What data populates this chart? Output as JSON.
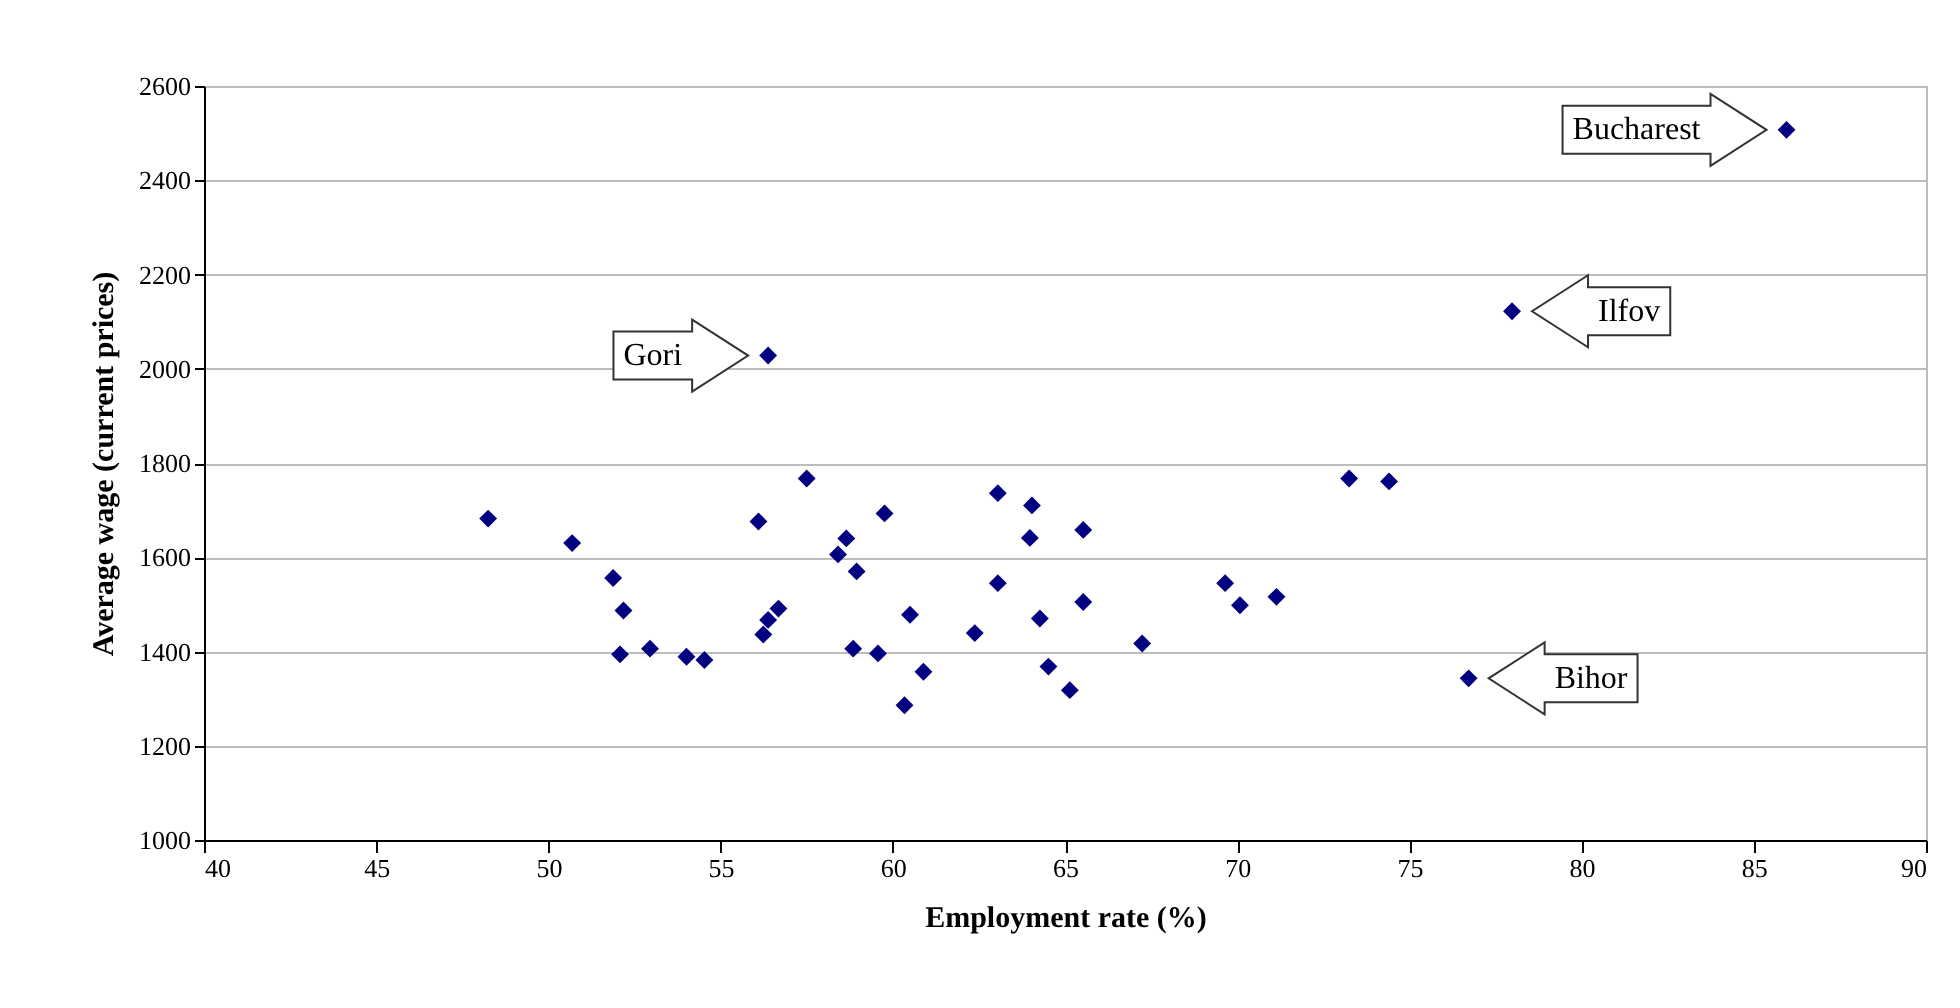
{
  "chart_data": {
    "type": "scatter",
    "xlabel": "Employment rate (%)",
    "ylabel": "Average wage (current prices)",
    "xlim": [
      40,
      90
    ],
    "xticks": [
      40,
      45,
      50,
      55,
      60,
      65,
      70,
      75,
      80,
      85,
      90
    ],
    "ylim": [
      1000,
      2600
    ],
    "yticks": [
      1000,
      1200,
      1400,
      1600,
      1800,
      2000,
      2200,
      2400,
      2600
    ],
    "grid": "y",
    "marker": "diamond",
    "legend": false,
    "series": [
      {
        "color": "#000080",
        "x": [
          48.25,
          50.69,
          51.88,
          52.18,
          52.08,
          52.95,
          54.01,
          54.53,
          56.1,
          56.68,
          56.38,
          56.24,
          57.5,
          59.76,
          58.65,
          58.41,
          58.95,
          58.85,
          59.57,
          60.5,
          60.89,
          60.34,
          56.38,
          63.05,
          64.04,
          63.98,
          65.53,
          63.05,
          65.53,
          64.27,
          62.38,
          64.52,
          65.14,
          67.24,
          69.65,
          70.08,
          71.14,
          73.25,
          74.41,
          85.95,
          77.98,
          76.72
        ],
        "values": [
          1682,
          1630,
          1556,
          1487,
          1394,
          1406,
          1389,
          1382,
          1676,
          1491,
          1467,
          1436,
          1767,
          1693,
          1640,
          1606,
          1570,
          1406,
          1396,
          1478,
          1357,
          1286,
          2028,
          1736,
          1710,
          1641,
          1658,
          1545,
          1505,
          1470,
          1439,
          1368,
          1318,
          1417,
          1545,
          1498,
          1516,
          1767,
          1761,
          2507,
          2122,
          1343
        ]
      }
    ],
    "annotations": [
      {
        "text": "Bucharest",
        "x": 85.95,
        "y": 2507
      },
      {
        "text": "Ilfov",
        "x": 77.98,
        "y": 2122
      },
      {
        "text": "Gori",
        "x": 56.38,
        "y": 2028
      },
      {
        "text": "Bihor",
        "x": 76.72,
        "y": 1343
      }
    ]
  }
}
